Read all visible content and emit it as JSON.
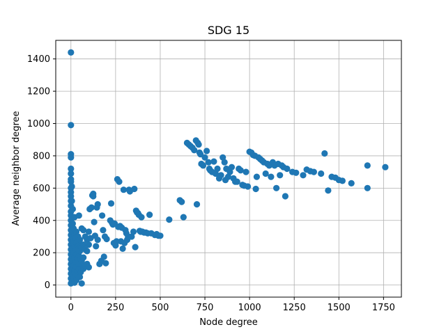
{
  "chart_data": {
    "type": "scatter",
    "title": "SDG 15",
    "xlabel": "Node degree",
    "ylabel": "Average neighbor degree",
    "xlim": [
      -85,
      1850
    ],
    "ylim": [
      -75,
      1515
    ],
    "xticks": [
      0,
      250,
      500,
      750,
      1000,
      1250,
      1500,
      1750
    ],
    "yticks": [
      0,
      200,
      400,
      600,
      800,
      1000,
      1200,
      1400
    ],
    "grid": true,
    "marker_color": "#1f77b4",
    "series": [
      {
        "points": [
          [
            0,
            1440
          ],
          [
            0,
            990
          ],
          [
            0,
            810
          ],
          [
            0,
            790
          ],
          [
            0,
            720
          ],
          [
            0,
            690
          ],
          [
            0,
            655
          ],
          [
            0,
            640
          ],
          [
            0,
            600
          ],
          [
            0,
            575
          ],
          [
            0,
            550
          ],
          [
            0,
            520
          ],
          [
            0,
            490
          ],
          [
            0,
            455
          ],
          [
            0,
            430
          ],
          [
            0,
            400
          ],
          [
            0,
            370
          ],
          [
            0,
            340
          ],
          [
            0,
            310
          ],
          [
            0,
            280
          ],
          [
            0,
            250
          ],
          [
            0,
            220
          ],
          [
            0,
            190
          ],
          [
            0,
            160
          ],
          [
            0,
            130
          ],
          [
            0,
            100
          ],
          [
            0,
            70
          ],
          [
            0,
            40
          ],
          [
            0,
            10
          ],
          [
            5,
            610
          ],
          [
            5,
            520
          ],
          [
            5,
            420
          ],
          [
            5,
            330
          ],
          [
            5,
            260
          ],
          [
            5,
            180
          ],
          [
            5,
            90
          ],
          [
            5,
            20
          ],
          [
            10,
            470
          ],
          [
            10,
            380
          ],
          [
            10,
            300
          ],
          [
            10,
            230
          ],
          [
            10,
            150
          ],
          [
            10,
            60
          ],
          [
            15,
            350
          ],
          [
            15,
            270
          ],
          [
            15,
            200
          ],
          [
            15,
            120
          ],
          [
            15,
            40
          ],
          [
            20,
            420
          ],
          [
            20,
            310
          ],
          [
            20,
            240
          ],
          [
            20,
            170
          ],
          [
            20,
            90
          ],
          [
            20,
            15
          ],
          [
            25,
            290
          ],
          [
            25,
            210
          ],
          [
            25,
            140
          ],
          [
            25,
            70
          ],
          [
            30,
            330
          ],
          [
            30,
            260
          ],
          [
            30,
            190
          ],
          [
            30,
            110
          ],
          [
            30,
            30
          ],
          [
            35,
            240
          ],
          [
            35,
            160
          ],
          [
            35,
            80
          ],
          [
            40,
            300
          ],
          [
            40,
            220
          ],
          [
            40,
            140
          ],
          [
            40,
            60
          ],
          [
            45,
            430
          ],
          [
            45,
            250
          ],
          [
            45,
            180
          ],
          [
            45,
            100
          ],
          [
            50,
            280
          ],
          [
            50,
            210
          ],
          [
            50,
            130
          ],
          [
            50,
            50
          ],
          [
            55,
            240
          ],
          [
            55,
            160
          ],
          [
            55,
            80
          ],
          [
            60,
            350
          ],
          [
            60,
            230
          ],
          [
            60,
            150
          ],
          [
            60,
            10
          ],
          [
            70,
            340
          ],
          [
            70,
            250
          ],
          [
            70,
            170
          ],
          [
            70,
            100
          ],
          [
            80,
            300
          ],
          [
            80,
            220
          ],
          [
            80,
            120
          ],
          [
            90,
            280
          ],
          [
            90,
            210
          ],
          [
            90,
            130
          ],
          [
            100,
            330
          ],
          [
            100,
            250
          ],
          [
            100,
            110
          ],
          [
            105,
            470
          ],
          [
            110,
            290
          ],
          [
            115,
            480
          ],
          [
            120,
            555
          ],
          [
            125,
            565
          ],
          [
            125,
            550
          ],
          [
            130,
            390
          ],
          [
            135,
            305
          ],
          [
            140,
            240
          ],
          [
            145,
            480
          ],
          [
            150,
            280
          ],
          [
            150,
            500
          ],
          [
            160,
            130
          ],
          [
            170,
            150
          ],
          [
            175,
            430
          ],
          [
            180,
            340
          ],
          [
            185,
            175
          ],
          [
            190,
            300
          ],
          [
            195,
            135
          ],
          [
            200,
            285
          ],
          [
            220,
            400
          ],
          [
            225,
            505
          ],
          [
            230,
            385
          ],
          [
            235,
            375
          ],
          [
            240,
            260
          ],
          [
            245,
            380
          ],
          [
            250,
            245
          ],
          [
            255,
            270
          ],
          [
            260,
            655
          ],
          [
            265,
            360
          ],
          [
            270,
            640
          ],
          [
            275,
            365
          ],
          [
            280,
            270
          ],
          [
            285,
            355
          ],
          [
            290,
            225
          ],
          [
            295,
            590
          ],
          [
            300,
            260
          ],
          [
            305,
            340
          ],
          [
            310,
            320
          ],
          [
            315,
            280
          ],
          [
            320,
            300
          ],
          [
            325,
            590
          ],
          [
            330,
            580
          ],
          [
            340,
            300
          ],
          [
            350,
            330
          ],
          [
            355,
            595
          ],
          [
            360,
            235
          ],
          [
            365,
            460
          ],
          [
            370,
            450
          ],
          [
            375,
            445
          ],
          [
            380,
            435
          ],
          [
            385,
            335
          ],
          [
            390,
            330
          ],
          [
            395,
            420
          ],
          [
            400,
            330
          ],
          [
            410,
            325
          ],
          [
            420,
            325
          ],
          [
            430,
            320
          ],
          [
            440,
            435
          ],
          [
            450,
            320
          ],
          [
            470,
            310
          ],
          [
            480,
            315
          ],
          [
            490,
            305
          ],
          [
            500,
            305
          ],
          [
            550,
            405
          ],
          [
            610,
            525
          ],
          [
            620,
            515
          ],
          [
            630,
            420
          ],
          [
            650,
            880
          ],
          [
            660,
            870
          ],
          [
            670,
            860
          ],
          [
            680,
            850
          ],
          [
            690,
            835
          ],
          [
            700,
            895
          ],
          [
            705,
            500
          ],
          [
            710,
            880
          ],
          [
            715,
            870
          ],
          [
            720,
            820
          ],
          [
            725,
            810
          ],
          [
            730,
            750
          ],
          [
            740,
            740
          ],
          [
            750,
            790
          ],
          [
            760,
            830
          ],
          [
            770,
            760
          ],
          [
            775,
            720
          ],
          [
            780,
            710
          ],
          [
            790,
            700
          ],
          [
            800,
            765
          ],
          [
            810,
            690
          ],
          [
            820,
            720
          ],
          [
            830,
            660
          ],
          [
            840,
            680
          ],
          [
            850,
            790
          ],
          [
            860,
            760
          ],
          [
            865,
            650
          ],
          [
            870,
            720
          ],
          [
            880,
            670
          ],
          [
            890,
            700
          ],
          [
            900,
            730
          ],
          [
            910,
            660
          ],
          [
            920,
            640
          ],
          [
            930,
            640
          ],
          [
            940,
            720
          ],
          [
            950,
            710
          ],
          [
            960,
            620
          ],
          [
            970,
            615
          ],
          [
            980,
            700
          ],
          [
            990,
            610
          ],
          [
            1000,
            825
          ],
          [
            1010,
            820
          ],
          [
            1020,
            805
          ],
          [
            1030,
            800
          ],
          [
            1035,
            595
          ],
          [
            1040,
            670
          ],
          [
            1050,
            790
          ],
          [
            1060,
            780
          ],
          [
            1070,
            770
          ],
          [
            1080,
            760
          ],
          [
            1090,
            690
          ],
          [
            1100,
            750
          ],
          [
            1110,
            740
          ],
          [
            1120,
            670
          ],
          [
            1130,
            760
          ],
          [
            1140,
            740
          ],
          [
            1150,
            600
          ],
          [
            1160,
            750
          ],
          [
            1170,
            680
          ],
          [
            1180,
            740
          ],
          [
            1190,
            730
          ],
          [
            1200,
            550
          ],
          [
            1210,
            720
          ],
          [
            1240,
            700
          ],
          [
            1260,
            695
          ],
          [
            1300,
            680
          ],
          [
            1320,
            715
          ],
          [
            1340,
            705
          ],
          [
            1360,
            700
          ],
          [
            1400,
            690
          ],
          [
            1420,
            815
          ],
          [
            1440,
            585
          ],
          [
            1460,
            670
          ],
          [
            1480,
            665
          ],
          [
            1500,
            650
          ],
          [
            1520,
            645
          ],
          [
            1570,
            630
          ],
          [
            1660,
            740
          ],
          [
            1660,
            600
          ],
          [
            1760,
            730
          ]
        ]
      }
    ]
  }
}
